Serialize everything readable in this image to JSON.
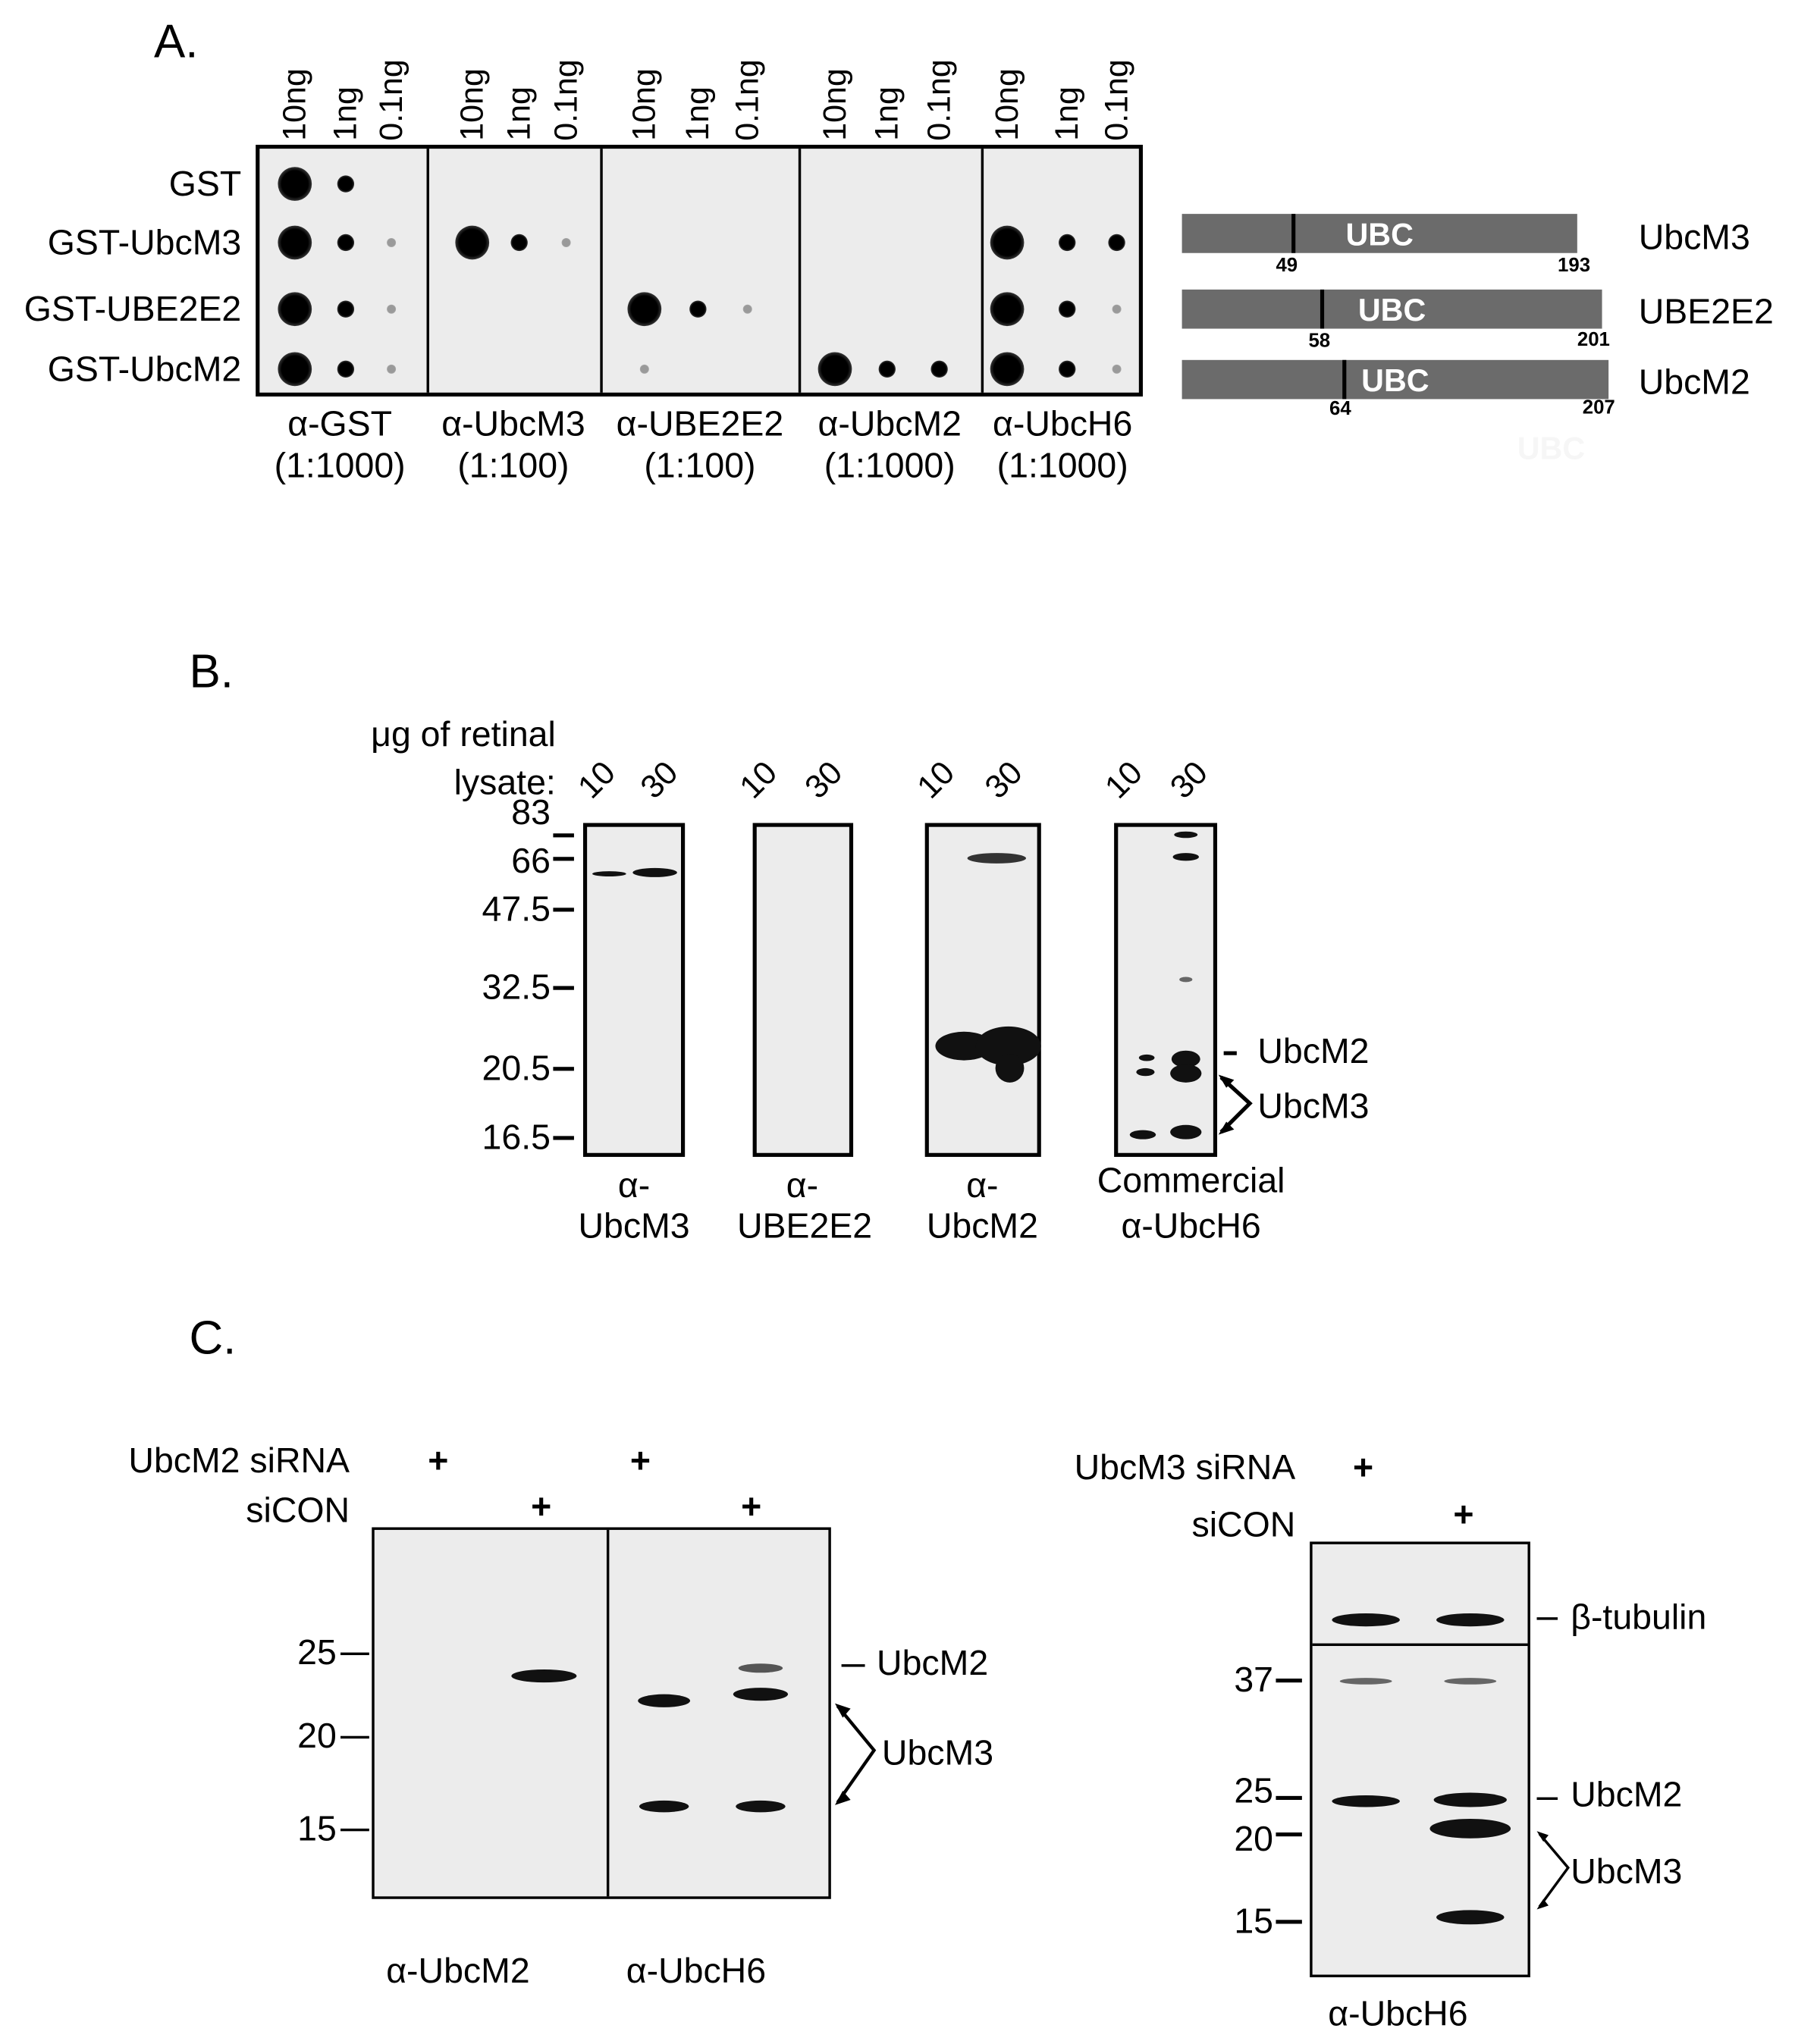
{
  "panel_a": {
    "label": "A.",
    "lane_labels": [
      "10ng",
      "1ng",
      "0.1ng"
    ],
    "rows": [
      "GST",
      "GST-UbcM3",
      "GST-UBE2E2",
      "GST-UbcM2"
    ],
    "antibodies": [
      {
        "name": "α-GST",
        "dilution": "(1:1000)",
        "signal": [
          [
            3,
            2,
            0
          ],
          [
            3,
            2,
            1
          ],
          [
            3,
            2,
            1
          ],
          [
            3,
            2,
            1
          ]
        ]
      },
      {
        "name": "α-UbcM3",
        "dilution": "(1:100)",
        "signal": [
          [
            0,
            0,
            0
          ],
          [
            3,
            2,
            1
          ],
          [
            0,
            0,
            0
          ],
          [
            0,
            0,
            0
          ]
        ]
      },
      {
        "name": "α-UBE2E2",
        "dilution": "(1:100)",
        "signal": [
          [
            0,
            0,
            0
          ],
          [
            0,
            0,
            0
          ],
          [
            3,
            2,
            1
          ],
          [
            1,
            0,
            0
          ]
        ]
      },
      {
        "name": "α-UbcM2",
        "dilution": "(1:1000)",
        "signal": [
          [
            0,
            0,
            0
          ],
          [
            0,
            0,
            0
          ],
          [
            0,
            0,
            0
          ],
          [
            3,
            2,
            2
          ]
        ]
      },
      {
        "name": "α-UbcH6",
        "dilution": "(1:1000)",
        "signal": [
          [
            0,
            0,
            0
          ],
          [
            3,
            2,
            2
          ],
          [
            3,
            2,
            1
          ],
          [
            3,
            2,
            1
          ]
        ]
      }
    ],
    "domains": [
      {
        "name": "UbcM3",
        "domain": "UBC",
        "start": "49",
        "end": "193"
      },
      {
        "name": "UBE2E2",
        "domain": "UBC",
        "start": "58",
        "end": "201"
      },
      {
        "name": "UbcM2",
        "domain": "UBC",
        "start": "64",
        "end": "207"
      }
    ],
    "ghost_label": "UBC"
  },
  "panel_b": {
    "label": "B.",
    "lysate_label_1": "μg of retinal",
    "lysate_label_2": "lysate:",
    "amounts": [
      "10",
      "30"
    ],
    "mw_markers": [
      "83",
      "66",
      "47.5",
      "32.5",
      "20.5",
      "16.5"
    ],
    "blots": [
      {
        "line1": "α-",
        "line2": "UbcM3"
      },
      {
        "line1": "α-",
        "line2": "UBE2E2"
      },
      {
        "line1": "α-",
        "line2": "UbcM2"
      },
      {
        "line1": "Commercial",
        "line2": "α-UbcH6"
      }
    ],
    "band_labels": [
      "UbcM2",
      "UbcM3"
    ]
  },
  "panel_c": {
    "label": "C.",
    "left": {
      "rows": [
        "UbcM2 siRNA",
        "siCON"
      ],
      "plus": "+",
      "mw_markers": [
        "25",
        "20",
        "15"
      ],
      "blots": [
        "α-UbcM2",
        "α-UbcH6"
      ],
      "band_labels": [
        "UbcM2",
        "UbcM3"
      ]
    },
    "right": {
      "rows": [
        "UbcM3 siRNA",
        "siCON"
      ],
      "plus": "+",
      "top_label": "β-tubulin",
      "mw_markers": [
        "37",
        "25",
        "20",
        "15"
      ],
      "blot": "α-UbcH6",
      "band_labels": [
        "UbcM2",
        "UbcM3"
      ]
    }
  }
}
